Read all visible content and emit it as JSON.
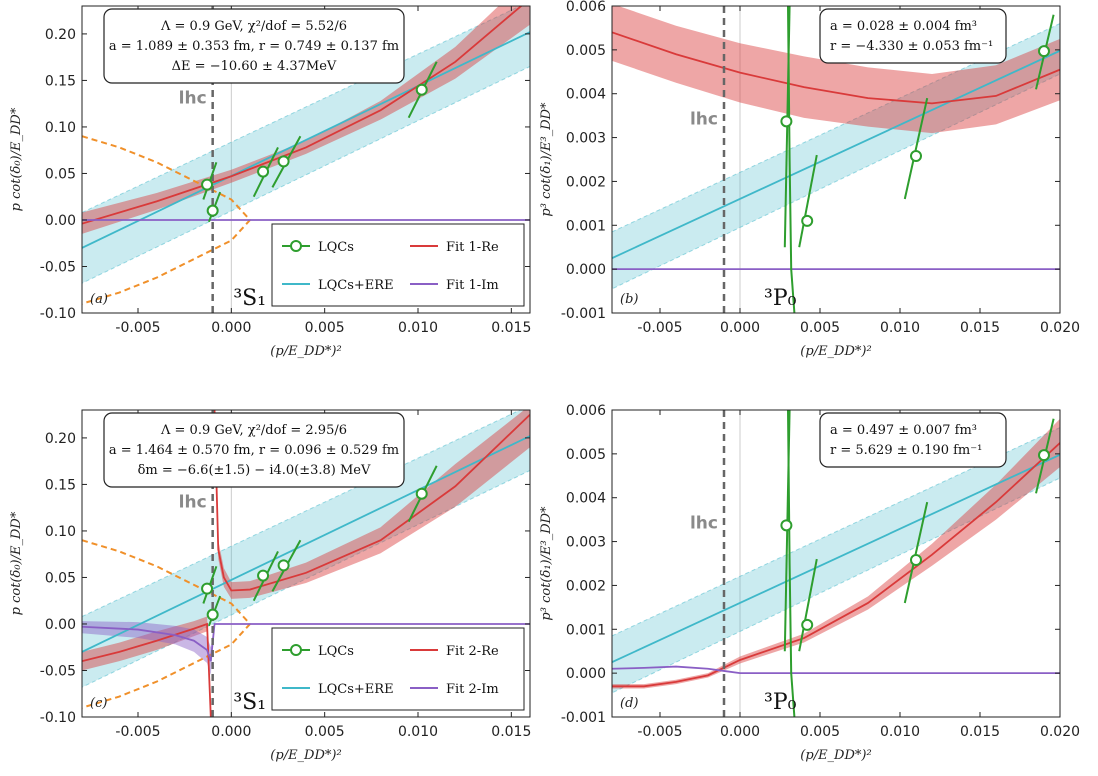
{
  "chart_data": [
    {
      "id": "a",
      "type": "line",
      "panel_label": "(a)",
      "wave_label": "³S₁",
      "xlabel": "(p/E_DD*)²",
      "ylabel": "p cot(δ₀)/E_DD*",
      "xlim": [
        -0.008,
        0.016
      ],
      "ylim": [
        -0.1,
        0.23
      ],
      "xticks": [
        -0.005,
        0.0,
        0.005,
        0.01,
        0.015
      ],
      "xtick_labels": [
        "-0.005",
        "0.000",
        "0.005",
        "0.010",
        "0.015"
      ],
      "yticks": [
        -0.1,
        -0.05,
        0.0,
        0.05,
        0.1,
        0.15,
        0.2
      ],
      "ytick_labels": [
        "-0.10",
        "-0.05",
        "0.00",
        "0.05",
        "0.10",
        "0.15",
        "0.20"
      ],
      "lhc_label": "lhc",
      "lhc_x": -0.001,
      "annotation": [
        "Λ = 0.9 GeV, χ²/dof = 5.52/6",
        "a = 1.089 ± 0.353 fm, r = 0.749 ± 0.137 fm",
        "ΔE = −10.60 ± 4.37MeV"
      ],
      "legend": [
        "LQCs",
        "Fit 1-Re",
        "LQCs+ERE",
        "Fit 1-Im"
      ],
      "points": [
        {
          "x": -0.0013,
          "y": 0.038,
          "seg": [
            [
              -0.0015,
              0.022
            ],
            [
              -0.0008,
              0.062
            ]
          ]
        },
        {
          "x": -0.001,
          "y": 0.01,
          "seg": [
            [
              -0.0012,
              -0.002
            ],
            [
              -0.0006,
              0.03
            ]
          ]
        },
        {
          "x": 0.0017,
          "y": 0.052,
          "seg": [
            [
              0.0012,
              0.025
            ],
            [
              0.0025,
              0.078
            ]
          ]
        },
        {
          "x": 0.0028,
          "y": 0.063,
          "seg": [
            [
              0.0022,
              0.035
            ],
            [
              0.0037,
              0.09
            ]
          ]
        },
        {
          "x": 0.0102,
          "y": 0.14,
          "seg": [
            [
              0.0095,
              0.11
            ],
            [
              0.011,
              0.17
            ]
          ]
        }
      ],
      "series": [
        {
          "name": "LQCs+ERE",
          "color": "#3fb8c9",
          "x": [
            -0.008,
            0.016
          ],
          "y": [
            -0.03,
            0.202
          ],
          "band_lo": [
            -0.068,
            0.165
          ],
          "band_hi": [
            0.008,
            0.235
          ]
        },
        {
          "name": "Fit 1-Re",
          "color": "#d93a3a",
          "x": [
            -0.008,
            -0.004,
            0.0,
            0.004,
            0.008,
            0.012,
            0.016
          ],
          "y": [
            -0.004,
            0.02,
            0.047,
            0.078,
            0.118,
            0.17,
            0.238
          ],
          "band_lo": [
            -0.015,
            0.011,
            0.04,
            0.071,
            0.108,
            0.152,
            0.21
          ],
          "band_hi": [
            0.008,
            0.029,
            0.054,
            0.085,
            0.128,
            0.186,
            0.262
          ]
        },
        {
          "name": "Fit 1-Im",
          "color": "#8a5fc5",
          "x": [
            -0.008,
            0.016
          ],
          "y": [
            0.0,
            0.0
          ]
        }
      ],
      "dashed_curve": {
        "color": "#f0902a",
        "x": [
          -0.008,
          -0.006,
          -0.004,
          -0.002,
          0.0,
          0.001,
          0.0,
          -0.002,
          -0.004,
          -0.006,
          -0.008
        ],
        "y": [
          0.09,
          0.078,
          0.062,
          0.042,
          0.022,
          0.0,
          -0.022,
          -0.042,
          -0.062,
          -0.078,
          -0.09
        ]
      }
    },
    {
      "id": "b",
      "type": "line",
      "panel_label": "(b)",
      "wave_label": "³P₀",
      "xlabel": "(p/E_DD*)²",
      "ylabel": "p³ cot(δ₁)/E³_DD*",
      "xlim": [
        -0.008,
        0.02
      ],
      "ylim": [
        -0.001,
        0.006
      ],
      "xticks": [
        -0.005,
        0.0,
        0.005,
        0.01,
        0.015,
        0.02
      ],
      "xtick_labels": [
        "-0.005",
        "0.000",
        "0.005",
        "0.010",
        "0.015",
        "0.020"
      ],
      "yticks": [
        -0.001,
        0.0,
        0.001,
        0.002,
        0.003,
        0.004,
        0.005,
        0.006
      ],
      "ytick_labels": [
        "-0.001",
        "0.000",
        "0.001",
        "0.002",
        "0.003",
        "0.004",
        "0.005",
        "0.006"
      ],
      "lhc_label": "lhc",
      "lhc_x": -0.001,
      "annotation": [
        "a = 0.028 ± 0.004 fm³",
        "r = −4.330 ± 0.053 fm⁻¹"
      ],
      "points": [
        {
          "x": 0.0029,
          "y": 0.00337,
          "seg": [
            [
              0.0028,
              0.0005
            ],
            [
              0.0031,
              0.006
            ]
          ]
        },
        {
          "x": 0.0042,
          "y": 0.0011,
          "seg": [
            [
              0.0037,
              0.0005
            ],
            [
              0.0048,
              0.0026
            ]
          ]
        },
        {
          "x": 0.011,
          "y": 0.00258,
          "seg": [
            [
              0.0103,
              0.0016
            ],
            [
              0.0117,
              0.0039
            ]
          ]
        },
        {
          "x": 0.019,
          "y": 0.00497,
          "seg": [
            [
              0.0185,
              0.0041
            ],
            [
              0.0196,
              0.0058
            ]
          ]
        }
      ],
      "series": [
        {
          "name": "LQCs+ERE",
          "color": "#3fb8c9",
          "x": [
            -0.008,
            0.02
          ],
          "y": [
            0.00025,
            0.00498
          ],
          "band_lo": [
            -0.00045,
            0.00445
          ],
          "band_hi": [
            0.00085,
            0.0056
          ]
        },
        {
          "name": "Fit 1-Re",
          "color": "#d93a3a",
          "x": [
            -0.008,
            -0.004,
            0.0,
            0.004,
            0.008,
            0.012,
            0.016,
            0.02
          ],
          "y": [
            0.0054,
            0.0049,
            0.00448,
            0.00415,
            0.0039,
            0.00378,
            0.00395,
            0.00455
          ],
          "band_lo": [
            0.00475,
            0.00425,
            0.0038,
            0.00345,
            0.00325,
            0.0031,
            0.0033,
            0.00385
          ],
          "band_hi": [
            0.00605,
            0.00555,
            0.00515,
            0.00485,
            0.0046,
            0.00445,
            0.00465,
            0.00525
          ]
        },
        {
          "name": "Fit 1-Im",
          "color": "#8a5fc5",
          "x": [
            -0.008,
            0.02
          ],
          "y": [
            0.0,
            0.0
          ]
        }
      ],
      "extra_green": {
        "x": [
          0.003,
          0.0031,
          0.0032,
          0.0034
        ],
        "y": [
          0.006,
          0.0025,
          0.0,
          -0.001
        ]
      }
    },
    {
      "id": "c",
      "type": "line",
      "panel_label": "(c)",
      "wave_label": "³S₁",
      "xlabel": "(p/E_DD*)²",
      "ylabel": "p cot(δ₀)/E_DD*",
      "xlim": [
        -0.008,
        0.016
      ],
      "ylim": [
        -0.1,
        0.23
      ],
      "xticks": [
        -0.005,
        0.0,
        0.005,
        0.01,
        0.015
      ],
      "xtick_labels": [
        "-0.005",
        "0.000",
        "0.005",
        "0.010",
        "0.015"
      ],
      "yticks": [
        -0.1,
        -0.05,
        0.0,
        0.05,
        0.1,
        0.15,
        0.2
      ],
      "ytick_labels": [
        "-0.10",
        "-0.05",
        "0.00",
        "0.05",
        "0.10",
        "0.15",
        "0.20"
      ],
      "lhc_label": "lhc",
      "lhc_x": -0.001,
      "annotation": [
        "Λ = 0.9 GeV, χ²/dof = 2.95/6",
        "a = 1.464 ± 0.570 fm, r = 0.096 ± 0.529 fm",
        "δm = −6.6(±1.5) − i4.0(±3.8) MeV"
      ],
      "legend": [
        "LQCs",
        "Fit 2-Re",
        "LQCs+ERE",
        "Fit 2-Im"
      ],
      "points": [
        {
          "x": -0.0013,
          "y": 0.038,
          "seg": [
            [
              -0.0015,
              0.022
            ],
            [
              -0.0008,
              0.062
            ]
          ]
        },
        {
          "x": -0.001,
          "y": 0.01,
          "seg": [
            [
              -0.0012,
              -0.002
            ],
            [
              -0.0006,
              0.03
            ]
          ]
        },
        {
          "x": 0.0017,
          "y": 0.052,
          "seg": [
            [
              0.0012,
              0.025
            ],
            [
              0.0025,
              0.078
            ]
          ]
        },
        {
          "x": 0.0028,
          "y": 0.063,
          "seg": [
            [
              0.0022,
              0.035
            ],
            [
              0.0037,
              0.09
            ]
          ]
        },
        {
          "x": 0.0102,
          "y": 0.14,
          "seg": [
            [
              0.0095,
              0.11
            ],
            [
              0.011,
              0.17
            ]
          ]
        }
      ],
      "series": [
        {
          "name": "LQCs+ERE",
          "color": "#3fb8c9",
          "x": [
            -0.008,
            0.016
          ],
          "y": [
            -0.03,
            0.202
          ],
          "band_lo": [
            -0.068,
            0.165
          ],
          "band_hi": [
            0.008,
            0.235
          ]
        },
        {
          "name": "Fit 2-Re",
          "color": "#d93a3a",
          "x": [
            -0.008,
            -0.006,
            -0.004,
            -0.002,
            -0.0013,
            -0.0011
          ],
          "y": [
            -0.04,
            -0.03,
            -0.018,
            -0.005,
            0.0,
            -0.1
          ],
          "band_lo": [
            -0.05,
            -0.04,
            -0.028,
            -0.013,
            -0.008,
            -0.1
          ],
          "band_hi": [
            -0.03,
            -0.02,
            -0.008,
            0.003,
            0.008,
            -0.09
          ]
        },
        {
          "name": "Fit 2-Re",
          "color": "#d93a3a",
          "x": [
            -0.0009,
            -0.0007,
            -0.0004,
            0.0,
            0.001,
            0.004,
            0.008,
            0.012,
            0.016
          ],
          "y": [
            0.23,
            0.08,
            0.05,
            0.036,
            0.037,
            0.055,
            0.09,
            0.148,
            0.225
          ],
          "band_lo": [
            0.23,
            0.07,
            0.04,
            0.027,
            0.028,
            0.044,
            0.076,
            0.126,
            0.19
          ],
          "band_hi": [
            0.23,
            0.09,
            0.06,
            0.045,
            0.046,
            0.066,
            0.104,
            0.172,
            0.235
          ]
        },
        {
          "name": "Fit 2-Im",
          "color": "#8a5fc5",
          "x": [
            -0.008,
            -0.005,
            -0.003,
            -0.002,
            -0.0013,
            -0.0011,
            -0.0009,
            0.0,
            0.016
          ],
          "y": [
            -0.003,
            -0.006,
            -0.012,
            -0.018,
            -0.028,
            -0.04,
            0.0,
            0.0,
            0.0
          ],
          "band_lo": [
            -0.01,
            -0.015,
            -0.022,
            -0.03,
            -0.042,
            -0.055,
            0.0,
            0.0,
            0.0
          ],
          "band_hi": [
            0.003,
            0.002,
            -0.002,
            -0.006,
            -0.014,
            -0.025,
            0.0,
            0.0,
            0.0
          ]
        }
      ],
      "dashed_curve": {
        "color": "#f0902a",
        "x": [
          -0.008,
          -0.006,
          -0.004,
          -0.002,
          0.0,
          0.001,
          0.0,
          -0.002,
          -0.004,
          -0.006,
          -0.008
        ],
        "y": [
          0.09,
          0.078,
          0.062,
          0.042,
          0.022,
          0.0,
          -0.022,
          -0.042,
          -0.062,
          -0.078,
          -0.09
        ]
      }
    },
    {
      "id": "d",
      "type": "line",
      "panel_label": "(d)",
      "wave_label": "³P₀",
      "xlabel": "(p/E_DD*)²",
      "ylabel": "p³ cot(δ₁)/E³_DD*",
      "xlim": [
        -0.008,
        0.02
      ],
      "ylim": [
        -0.001,
        0.006
      ],
      "xticks": [
        -0.005,
        0.0,
        0.005,
        0.01,
        0.015,
        0.02
      ],
      "xtick_labels": [
        "-0.005",
        "0.000",
        "0.005",
        "0.010",
        "0.015",
        "0.020"
      ],
      "yticks": [
        -0.001,
        0.0,
        0.001,
        0.002,
        0.003,
        0.004,
        0.005,
        0.006
      ],
      "ytick_labels": [
        "-0.001",
        "0.000",
        "0.001",
        "0.002",
        "0.003",
        "0.004",
        "0.005",
        "0.006"
      ],
      "lhc_label": "lhc",
      "lhc_x": -0.001,
      "annotation": [
        "a = 0.497 ± 0.007 fm³",
        "r = 5.629 ± 0.190 fm⁻¹"
      ],
      "points": [
        {
          "x": 0.0029,
          "y": 0.00337,
          "seg": [
            [
              0.0028,
              0.0005
            ],
            [
              0.0031,
              0.006
            ]
          ]
        },
        {
          "x": 0.0042,
          "y": 0.0011,
          "seg": [
            [
              0.0037,
              0.0005
            ],
            [
              0.0048,
              0.0026
            ]
          ]
        },
        {
          "x": 0.011,
          "y": 0.00258,
          "seg": [
            [
              0.0103,
              0.0016
            ],
            [
              0.0117,
              0.0039
            ]
          ]
        },
        {
          "x": 0.019,
          "y": 0.00497,
          "seg": [
            [
              0.0185,
              0.0041
            ],
            [
              0.0196,
              0.0058
            ]
          ]
        }
      ],
      "series": [
        {
          "name": "LQCs+ERE",
          "color": "#3fb8c9",
          "x": [
            -0.008,
            0.02
          ],
          "y": [
            0.00025,
            0.00498
          ],
          "band_lo": [
            -0.00045,
            0.00445
          ],
          "band_hi": [
            0.00085,
            0.0056
          ]
        },
        {
          "name": "Fit 2-Re",
          "color": "#d93a3a",
          "x": [
            -0.008,
            -0.006,
            -0.004,
            -0.002,
            0.0,
            0.004,
            0.008,
            0.012,
            0.016,
            0.02
          ],
          "y": [
            -0.0003,
            -0.0003,
            -0.0002,
            -5e-05,
            0.0003,
            0.0008,
            0.0016,
            0.0027,
            0.0039,
            0.00525
          ],
          "band_lo": [
            -0.00035,
            -0.00035,
            -0.00025,
            -0.0001,
            0.00022,
            0.0007,
            0.00145,
            0.00245,
            0.0035,
            0.0047
          ],
          "band_hi": [
            -0.00025,
            -0.00025,
            -0.00015,
            0.0,
            0.00038,
            0.0009,
            0.00175,
            0.00295,
            0.0043,
            0.0058
          ]
        },
        {
          "name": "Fit 2-Im",
          "color": "#8a5fc5",
          "x": [
            -0.008,
            -0.006,
            -0.004,
            -0.002,
            -0.001,
            0.0,
            0.02
          ],
          "y": [
            0.0001,
            0.00012,
            0.00015,
            0.0001,
            5e-05,
            0.0,
            0.0
          ]
        }
      ],
      "extra_green": {
        "x": [
          0.003,
          0.0031,
          0.0032,
          0.0034
        ],
        "y": [
          0.006,
          0.0025,
          0.0,
          -0.001
        ]
      }
    }
  ]
}
